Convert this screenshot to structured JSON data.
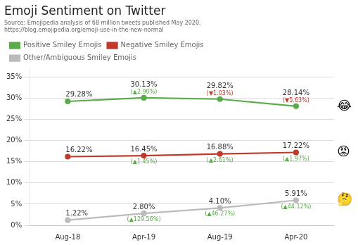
{
  "chart_data": {
    "type": "line",
    "title": "Emoji Sentiment on Twitter",
    "subtitle": "Source: Emojipedia analysis of 68 million tweets published May 2020.\nhttps://blog.emojipedia.org/emoji-use-in-the-new-normal",
    "categories": [
      "Aug-18",
      "Apr-19",
      "Aug-19",
      "Apr-20"
    ],
    "series": [
      {
        "name": "Positive Smiley Emojis",
        "color": "#5aab4a",
        "values": [
          29.28,
          30.13,
          29.82,
          28.14
        ],
        "value_labels": [
          "29.28%",
          "30.13%",
          "29.82%",
          "28.14%"
        ],
        "change_labels": [
          null,
          "(▲2.90%)",
          "(▼1.03%)",
          "(▼5.63%)"
        ],
        "end_label": "😂"
      },
      {
        "name": "Negative Smiley Emojis",
        "color": "#C0392B",
        "values": [
          16.22,
          16.45,
          16.88,
          17.22
        ],
        "value_labels": [
          "16.22%",
          "16.45%",
          "16.88%",
          "17.22%"
        ],
        "change_labels": [
          null,
          "(▲1.45%)",
          "(▲2.61%)",
          "(▲1.97%)"
        ],
        "end_label": "😡"
      },
      {
        "name": "Other/Ambiguous Smiley Emojis",
        "color": "#BBBBBB",
        "values": [
          1.22,
          2.8,
          4.1,
          5.91
        ],
        "value_labels": [
          "1.22%",
          "2.80%",
          "4.10%",
          "5.91%"
        ],
        "change_labels": [
          null,
          "(▲129.56%)",
          "(▲46.27%)",
          "(▲44.12%)"
        ],
        "end_label": "🤔"
      }
    ],
    "ylim": [
      0,
      37
    ],
    "yticks": [
      {
        "value": 0,
        "label": "0%"
      },
      {
        "value": 5,
        "label": "5%"
      },
      {
        "value": 10,
        "label": "10%"
      },
      {
        "value": 15,
        "label": "15%"
      },
      {
        "value": 20,
        "label": "20%"
      },
      {
        "value": 25,
        "label": "25%"
      },
      {
        "value": 30,
        "label": "30%"
      },
      {
        "value": 35,
        "label": "35%"
      }
    ],
    "grid": true,
    "legend": "top",
    "data_labels": true
  }
}
